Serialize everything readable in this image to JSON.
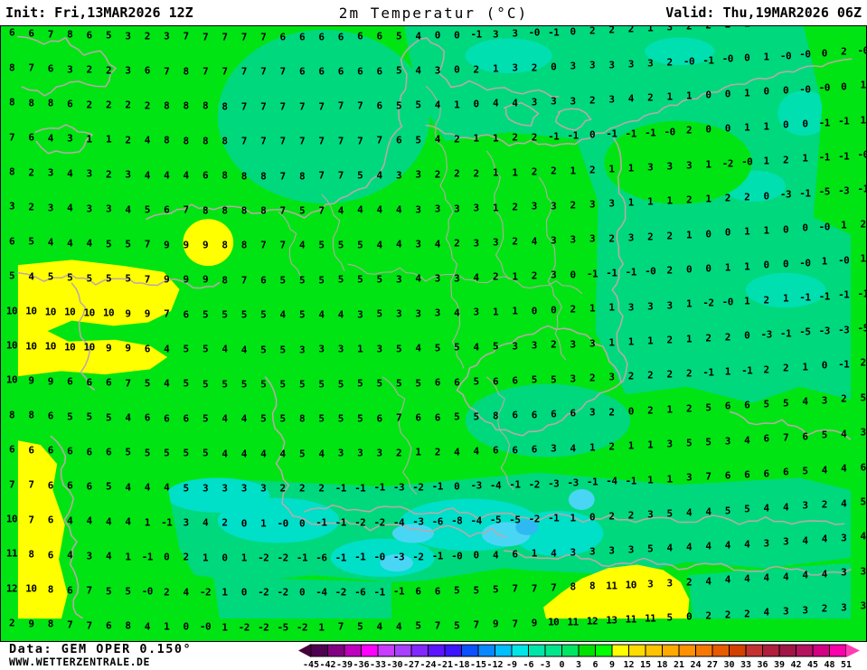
{
  "header": {
    "init_label": "Init: Fri,13MAR2026 12Z",
    "title": "2m Temperatur (°C)",
    "valid_label": "Valid: Thu,19MAR2026 06Z"
  },
  "footer": {
    "data_source": "Data: GEM OPER 0.150°",
    "website": "WWW.WETTERZENTRALE.DE"
  },
  "colorbar": {
    "tick_labels": [
      "-45",
      "-42",
      "-39",
      "-36",
      "-33",
      "-30",
      "-27",
      "-24",
      "-21",
      "-18",
      "-15",
      "-12",
      "-9",
      "-6",
      "-3",
      "0",
      "3",
      "6",
      "9",
      "12",
      "15",
      "18",
      "21",
      "24",
      "27",
      "30",
      "33",
      "36",
      "39",
      "42",
      "45",
      "48",
      "51"
    ],
    "cell_colors": [
      "#500050",
      "#820082",
      "#BE00BE",
      "#FF00FF",
      "#C83CFF",
      "#A841FF",
      "#8228FF",
      "#5A14FF",
      "#3C14FF",
      "#0A50FF",
      "#0A87FF",
      "#00BEFF",
      "#00E6E6",
      "#00E6AA",
      "#00E68C",
      "#00E664",
      "#00E100",
      "#00FF00",
      "#FFFF00",
      "#FFDC00",
      "#FFC300",
      "#FFAA00",
      "#FF9100",
      "#F57800",
      "#E65A00",
      "#D24100",
      "#C33232",
      "#AF1E3C",
      "#A01446",
      "#B4145F",
      "#D20082",
      "#FA00AA"
    ],
    "left_arrow_color": "#46003C",
    "right_arrow_color": "#FF3CB4",
    "label_color": "#000000"
  },
  "map": {
    "colors": {
      "base_green": "#00E414",
      "emerald": "#00D87E",
      "pale_teal": "#00DFB0",
      "aqua": "#00DFC8",
      "cyan_blob": "#49D6F5",
      "deep_cyan": "#2FB9F2",
      "yellow": "#FFFF00",
      "border_line": "#BCA8A8",
      "value_text": "#000000"
    },
    "grid": {
      "col_start": 12,
      "col_step": 21.4,
      "row_start": 40,
      "row_step": 38.4,
      "curve_amp": 24,
      "curve_center": 300,
      "curve_span": 660
    },
    "rows": [
      "6 6 7 8 6 5 3 2 3 7 7 7 7 7 6 6 6 6 6 6 5 4 0 0 -1 3 3 -0 -1 0 2 2 2 1 3 2 2 2 1 0 0 0 -0 0 8",
      "8 7 6 3 2 2 3 6 7 8 7 7 7 7 7 6 6 6 6 6 5 4 3 0 2 1 3 2 0 3 3 3 3 3 2 -0 -1 -0 0 1 -0 -0 0 2 -0",
      "8 8 8 6 2 2 2 2 8 8 8 8 7 7 7 7 7 7 7 6 5 5 4 1 0 4 4 3 3 3 2 3 4 2 1 1 0 0 1 0 0 -0 -0 0 1",
      "7 6 4 3 1 1 2 4 8 8 8 8 7 7 7 7 7 7 7 7 6 5 4 2 1 1 2 2 -1 -1 0 -1 -1 -1 -0 2 0 0 1 1 0 0 -1 -1 1",
      "8 2 3 4 3 2 3 4 4 4 6 8 8 8 7 8 7 7 5 4 3 3 2 2 2 1 1 2 2 1 2 1 1 3 3 3 1 -2 -0 1 2 1 -1 -1 -0",
      "3 2 3 4 3 3 4 5 6 7 8 8 8 8 7 5 7 4 4 4 4 3 3 3 3 1 2 3 3 2 3 3 1 1 1 2 1 2 2 0 -3 -1 -5 -3 -1",
      "6 5 4 4 4 5 5 7 9 9 9 8 8 7 7 4 5 5 5 4 4 3 4 2 3 3 2 4 3 3 3 2 3 2 2 1 0 0 1 1 0 0 -0 1 2",
      "5 4 5 5 5 5 5 7 9 9 9 8 7 6 5 5 5 5 5 5 3 4 3 3 4 2 1 2 3 0 -1 -1 -1 -0 2 0 0 1 1 0 0 -0 1 -0 1",
      "10 10 10 10 10 10 9 9 7 6 5 5 5 5 4 5 4 4 3 5 3 3 3 4 3 1 1 0 0 2 1 1 3 3 3 1 -2 -0 1 2 1 -1 -1 -1 -1",
      "10 10 10 10 10 9 9 6 4 5 5 4 4 5 5 3 3 3 1 3 5 4 5 5 4 5 3 3 2 3 3 1 1 1 2 1 2 2 0 -3 -1 -5 -3 -3 -5",
      "10 9 9 6 6 6 7 5 4 5 5 5 5 5 5 5 5 5 5 5 5 5 6 6 5 6 6 5 5 3 2 3 2 2 2 2 -1 1 -1 2 2 1 0 -1 2",
      "8 8 6 5 5 5 4 6 6 6 5 4 4 5 5 8 5 5 5 6 7 6 6 5 5 8 6 6 6 6 3 2 0 2 1 2 5 6 6 5 5 4 3 2 5",
      "6 6 6 6 6 6 5 5 5 5 5 4 4 4 4 5 4 3 3 3 2 1 2 4 4 6 6 6 3 4 1 2 1 1 3 5 5 3 4 6 7 6 5 4 3",
      "7 7 6 6 6 5 4 4 4 5 3 3 3 3 2 2 2 -1 -1 -1 -3 -2 -1 0 -3 -4 -1 -2 -3 -3 -1 -4 -1 1 1 3 7 6 6 6 6 5 4 4 6",
      "10 7 6 4 4 4 4 1 -1 3 4 2 0 1 -0 0 -1 -1 -2 -2 -4 -3 -6 -8 -4 -5 -5 -2 -1 1 0 2 2 3 5 4 4 5 5 4 4 3 2 4 5",
      "11 8 6 4 3 4 1 -1 0 2 1 0 1 -2 -2 -1 -6 -1 -1 -0 -3 -2 -1 -0 0 4 6 1 4 3 3 3 3 5 4 4 4 4 4 3 3 4 4 3 4",
      "12 10 8 6 7 5 5 -0 2 4 -2 1 0 -2 -2 0 -4 -2 -6 -1 -1 6 6 5 5 5 7 7 7 8 8 11 10 3 3 2 4 4 4 4 4 4 4 3 3",
      "2 9 8 7 7 6 8 4 1 0 -0 1 -2 -2 -5 -2 1 7 5 4 4 5 7 5 7 9 7 9 10 11 12 13 11 11 5 0 2 2 2 4 3 3 2 3 3"
    ]
  }
}
